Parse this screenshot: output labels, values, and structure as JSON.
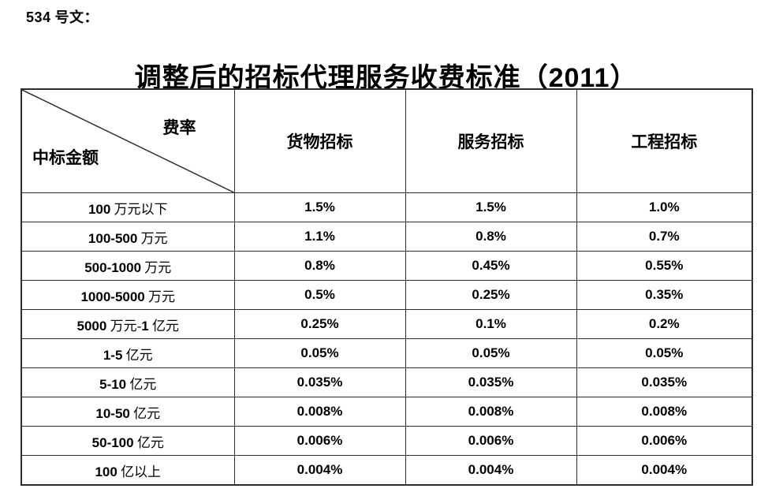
{
  "page": {
    "doc_ref": "534 号文：",
    "title": "调整后的招标代理服务收费标准（2011）"
  },
  "table": {
    "corner": {
      "top_right_label": "费率",
      "bottom_left_label": "中标金额"
    },
    "columns": [
      {
        "label": "货物招标"
      },
      {
        "label": "服务招标"
      },
      {
        "label": "工程招标"
      }
    ],
    "rows": [
      {
        "label": "100 万元以下",
        "values": [
          "1.5%",
          "1.5%",
          "1.0%"
        ]
      },
      {
        "label": "100-500 万元",
        "values": [
          "1.1%",
          "0.8%",
          "0.7%"
        ]
      },
      {
        "label": "500-1000 万元",
        "values": [
          "0.8%",
          "0.45%",
          "0.55%"
        ]
      },
      {
        "label": "1000-5000 万元",
        "values": [
          "0.5%",
          "0.25%",
          "0.35%"
        ]
      },
      {
        "label": "5000 万元-1 亿元",
        "values": [
          "0.25%",
          "0.1%",
          "0.2%"
        ]
      },
      {
        "label": "1-5 亿元",
        "values": [
          "0.05%",
          "0.05%",
          "0.05%"
        ]
      },
      {
        "label": "5-10 亿元",
        "values": [
          "0.035%",
          "0.035%",
          "0.035%"
        ]
      },
      {
        "label": "10-50 亿元",
        "values": [
          "0.008%",
          "0.008%",
          "0.008%"
        ]
      },
      {
        "label": "50-100 亿元",
        "values": [
          "0.006%",
          "0.006%",
          "0.006%"
        ]
      },
      {
        "label": "100 亿以上",
        "values": [
          "0.004%",
          "0.004%",
          "0.004%"
        ]
      }
    ]
  },
  "colors": {
    "text": "#000000",
    "border": "#2e2e2e",
    "background": "#ffffff"
  }
}
